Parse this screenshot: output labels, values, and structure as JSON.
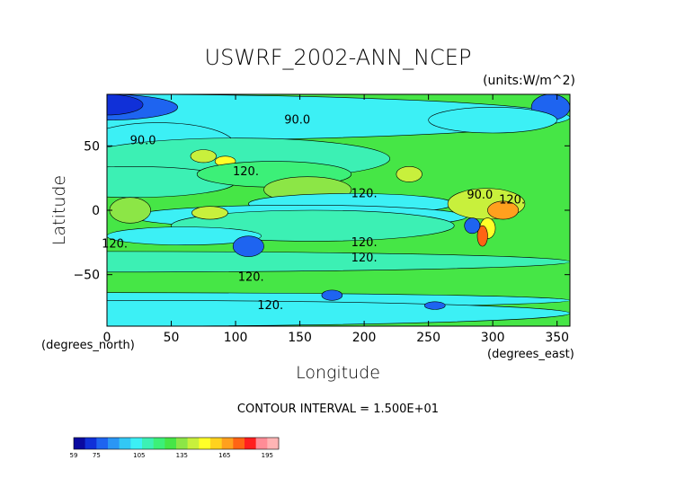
{
  "chart_data": {
    "type": "heatmap",
    "title": "USWRF_2002-ANN_NCEP",
    "units": "(units:W/m^2)",
    "xlabel": "Longitude",
    "ylabel": "Latitude",
    "x_unit_label": "(degrees_east)",
    "y_unit_label": "(degrees_north)",
    "xlim": [
      0,
      360
    ],
    "ylim": [
      -90,
      90
    ],
    "x_ticks": [
      "0",
      "50",
      "100",
      "150",
      "200",
      "250",
      "300",
      "350"
    ],
    "y_ticks": [
      "50",
      "0",
      "−50"
    ],
    "contour_interval_text": "CONTOUR INTERVAL = 1.500E+01",
    "contour_labels": [
      {
        "text": "90.0",
        "lon": 148,
        "lat": 70
      },
      {
        "text": "90.0",
        "lon": 28,
        "lat": 54
      },
      {
        "text": "120.",
        "lon": 108,
        "lat": 30
      },
      {
        "text": "120.",
        "lon": 200,
        "lat": 13
      },
      {
        "text": "120.",
        "lon": 315,
        "lat": 8
      },
      {
        "text": "120.",
        "lon": 6,
        "lat": -26
      },
      {
        "text": "120.",
        "lon": 200,
        "lat": -25
      },
      {
        "text": "120.",
        "lon": 200,
        "lat": -37
      },
      {
        "text": "120.",
        "lon": 112,
        "lat": -52
      },
      {
        "text": "120.",
        "lon": 127,
        "lat": -74
      },
      {
        "text": "90.0",
        "lon": 290,
        "lat": 12
      }
    ],
    "colorbar": {
      "min": 59,
      "max": 203,
      "tick_labels": [
        "59",
        "75",
        "105",
        "135",
        "165",
        "195"
      ],
      "tick_values": [
        59,
        75,
        105,
        135,
        165,
        195
      ],
      "colors": [
        "#0a0aa0",
        "#1030d8",
        "#1e64f0",
        "#2a96f5",
        "#32c8f5",
        "#3cf0f5",
        "#3cf0b4",
        "#3cf078",
        "#46e646",
        "#8ce646",
        "#c8f03c",
        "#ffff28",
        "#ffd21e",
        "#ffa01e",
        "#ff6414",
        "#ff1e1e",
        "#ff8c96",
        "#ffb4b4"
      ]
    }
  }
}
